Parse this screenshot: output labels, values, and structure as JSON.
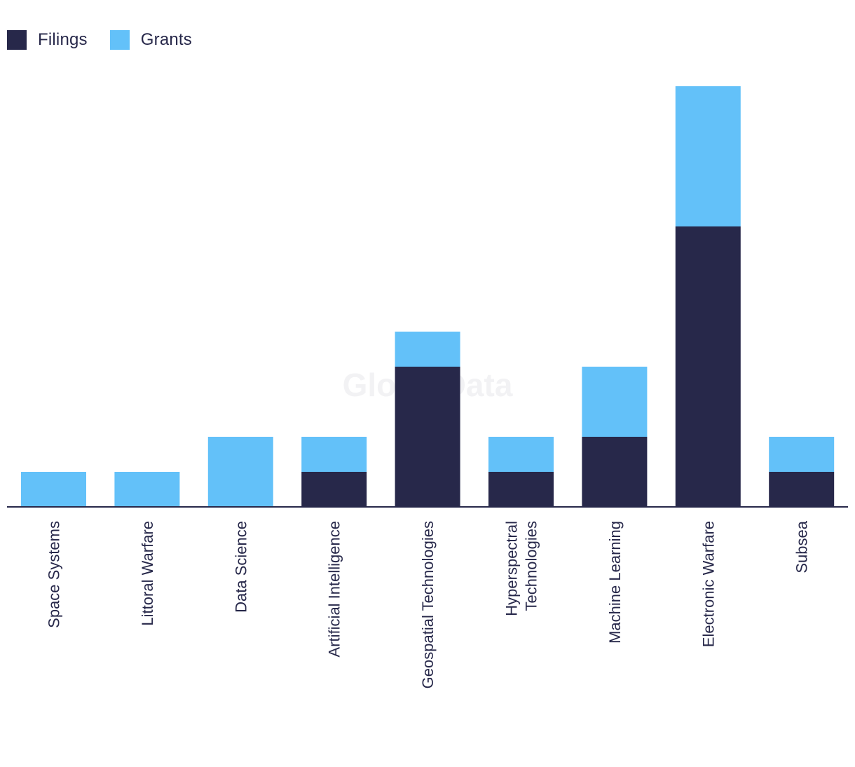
{
  "colors": {
    "filings": "#27284a",
    "grants": "#63c1f9",
    "axis": "#27284a"
  },
  "watermark": "GlobalData",
  "chart_data": {
    "type": "bar",
    "stacked": true,
    "title": "",
    "xlabel": "",
    "ylabel": "",
    "categories": [
      [
        "Space Systems"
      ],
      [
        "Littoral Warfare"
      ],
      [
        "Data Science"
      ],
      [
        "Artificial Intelligence"
      ],
      [
        "Geospatial Technologies"
      ],
      [
        "Hyperspectral",
        "Technologies"
      ],
      [
        "Machine Learning"
      ],
      [
        "Electronic Warfare"
      ],
      [
        "Subsea"
      ]
    ],
    "series": [
      {
        "name": "Filings",
        "values": [
          0,
          0,
          0,
          1,
          4,
          1,
          2,
          8,
          1
        ]
      },
      {
        "name": "Grants",
        "values": [
          1,
          1,
          2,
          1,
          1,
          1,
          2,
          4,
          1
        ]
      }
    ],
    "ylim": [
      0,
      12
    ],
    "grid": false,
    "legend": "top-left"
  }
}
